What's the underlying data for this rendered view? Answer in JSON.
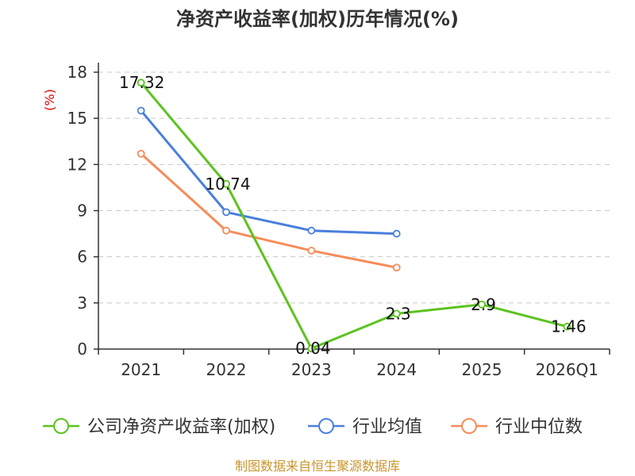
{
  "chart_data": {
    "type": "line",
    "title": "净资产收益率(加权)历年情况(%)",
    "ylabel": "(%)",
    "xlabel": "",
    "ylim": [
      0,
      18
    ],
    "yticks": [
      0,
      3,
      6,
      9,
      12,
      15,
      18
    ],
    "categories": [
      "2021",
      "2022",
      "2023",
      "2024",
      "2025",
      "2026Q1"
    ],
    "grid": true,
    "legend_position": "bottom",
    "series": [
      {
        "name": "公司净资产收益率(加权)",
        "color": "#5cc31f",
        "values": [
          17.32,
          10.74,
          0.04,
          2.3,
          2.9,
          1.46
        ],
        "labels": [
          "17.32",
          "10.74",
          "0.04",
          "2.3",
          "2.9",
          "1.46"
        ]
      },
      {
        "name": "行业均值",
        "color": "#4a7fdc",
        "values": [
          15.5,
          8.9,
          7.7,
          7.5,
          null,
          null
        ]
      },
      {
        "name": "行业中位数",
        "color": "#f78c5a",
        "values": [
          12.7,
          7.7,
          6.4,
          5.3,
          null,
          null
        ]
      }
    ]
  },
  "source": "制图数据来自恒生聚源数据库"
}
